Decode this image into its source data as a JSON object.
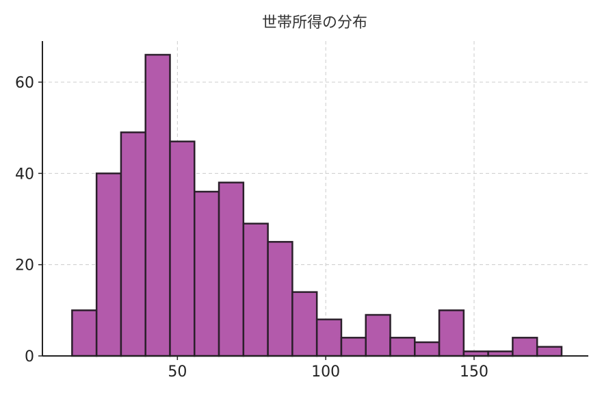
{
  "chart_data": {
    "type": "bar",
    "title": "世帯所得の分布",
    "xlabel": "",
    "ylabel": "",
    "bin_edges": [
      14.5,
      22.75,
      31.0,
      39.25,
      47.5,
      55.75,
      64.0,
      72.25,
      80.5,
      88.75,
      97.0,
      105.25,
      113.5,
      121.75,
      130.0,
      138.25,
      146.5,
      154.75,
      163.0,
      171.25,
      179.5
    ],
    "values": [
      10,
      40,
      49,
      66,
      47,
      36,
      38,
      29,
      25,
      14,
      8,
      4,
      9,
      4,
      3,
      10,
      1,
      1,
      4,
      2
    ],
    "xlim": [
      4.5,
      188.5
    ],
    "ylim": [
      0,
      69
    ],
    "x_ticks": [
      50,
      100,
      150
    ],
    "y_ticks": [
      0,
      20,
      40,
      60
    ],
    "grid": true,
    "bar_color": "#b35aab",
    "edge_color": "#2b1f2b"
  }
}
